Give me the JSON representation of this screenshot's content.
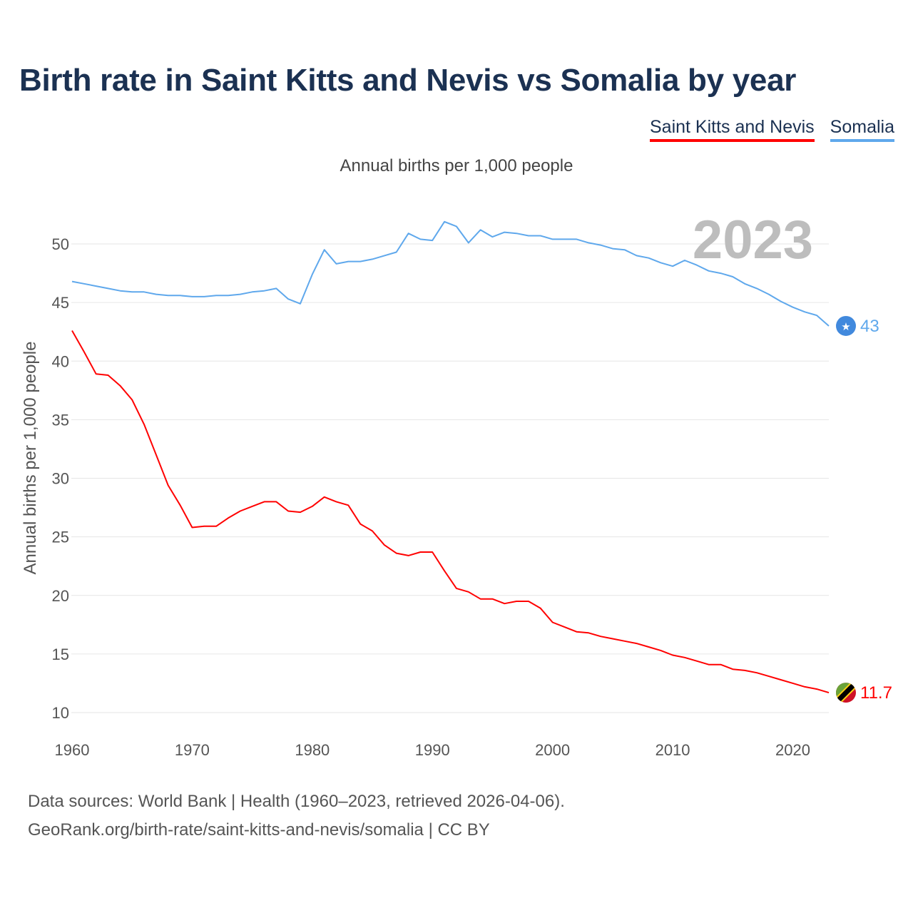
{
  "title": "Birth rate in Saint Kitts and Nevis vs Somalia by year",
  "footer": {
    "line1": "Data sources: World Bank | Health (1960–2023, retrieved 2026-04-06).",
    "line2": "GeoRank.org/birth-rate/saint-kitts-and-nevis/somalia | CC BY"
  },
  "chart_data": {
    "type": "line",
    "title": "Birth rate in Saint Kitts and Nevis vs Somalia by year",
    "subtitle": "Annual births per 1,000 people",
    "xlabel": "",
    "ylabel": "Annual births per 1,000 people",
    "year_label": "2023",
    "xlim": [
      1960,
      2023
    ],
    "ylim": [
      10,
      52
    ],
    "xticks": [
      1960,
      1970,
      1980,
      1990,
      2000,
      2010,
      2020
    ],
    "yticks": [
      10,
      15,
      20,
      25,
      30,
      35,
      40,
      45,
      50
    ],
    "grid": true,
    "legend_position": "top-right",
    "x_start": 1960,
    "series": [
      {
        "name": "Saint Kitts and Nevis",
        "color": "#ff0000",
        "end_label": "11.7",
        "icon": "flag-saint-kitts-and-nevis-icon",
        "values": [
          42.6,
          40.8,
          38.9,
          38.8,
          37.9,
          36.7,
          34.6,
          32.0,
          29.4,
          27.7,
          25.8,
          25.9,
          25.9,
          26.6,
          27.2,
          27.6,
          28.0,
          28.0,
          27.2,
          27.1,
          27.6,
          28.4,
          28.0,
          27.7,
          26.1,
          25.5,
          24.3,
          23.6,
          23.4,
          23.7,
          23.7,
          22.1,
          20.6,
          20.3,
          19.7,
          19.7,
          19.3,
          19.5,
          19.5,
          18.9,
          17.7,
          17.3,
          16.9,
          16.8,
          16.5,
          16.3,
          16.1,
          15.9,
          15.6,
          15.3,
          14.9,
          14.7,
          14.4,
          14.1,
          14.1,
          13.7,
          13.6,
          13.4,
          13.1,
          12.8,
          12.5,
          12.2,
          12.0,
          11.7
        ]
      },
      {
        "name": "Somalia",
        "color": "#5fa8ec",
        "end_label": "43",
        "icon": "flag-somalia-icon",
        "values": [
          46.8,
          46.6,
          46.4,
          46.2,
          46.0,
          45.9,
          45.9,
          45.7,
          45.6,
          45.6,
          45.5,
          45.5,
          45.6,
          45.6,
          45.7,
          45.9,
          46.0,
          46.2,
          45.3,
          44.9,
          47.4,
          49.5,
          48.3,
          48.5,
          48.5,
          48.7,
          49.0,
          49.3,
          50.9,
          50.4,
          50.3,
          51.9,
          51.5,
          50.1,
          51.2,
          50.6,
          51.0,
          50.9,
          50.7,
          50.7,
          50.4,
          50.4,
          50.4,
          50.1,
          49.9,
          49.6,
          49.5,
          49.0,
          48.8,
          48.4,
          48.1,
          48.6,
          48.2,
          47.7,
          47.5,
          47.2,
          46.6,
          46.2,
          45.7,
          45.1,
          44.6,
          44.2,
          43.9,
          43.0
        ]
      }
    ]
  }
}
